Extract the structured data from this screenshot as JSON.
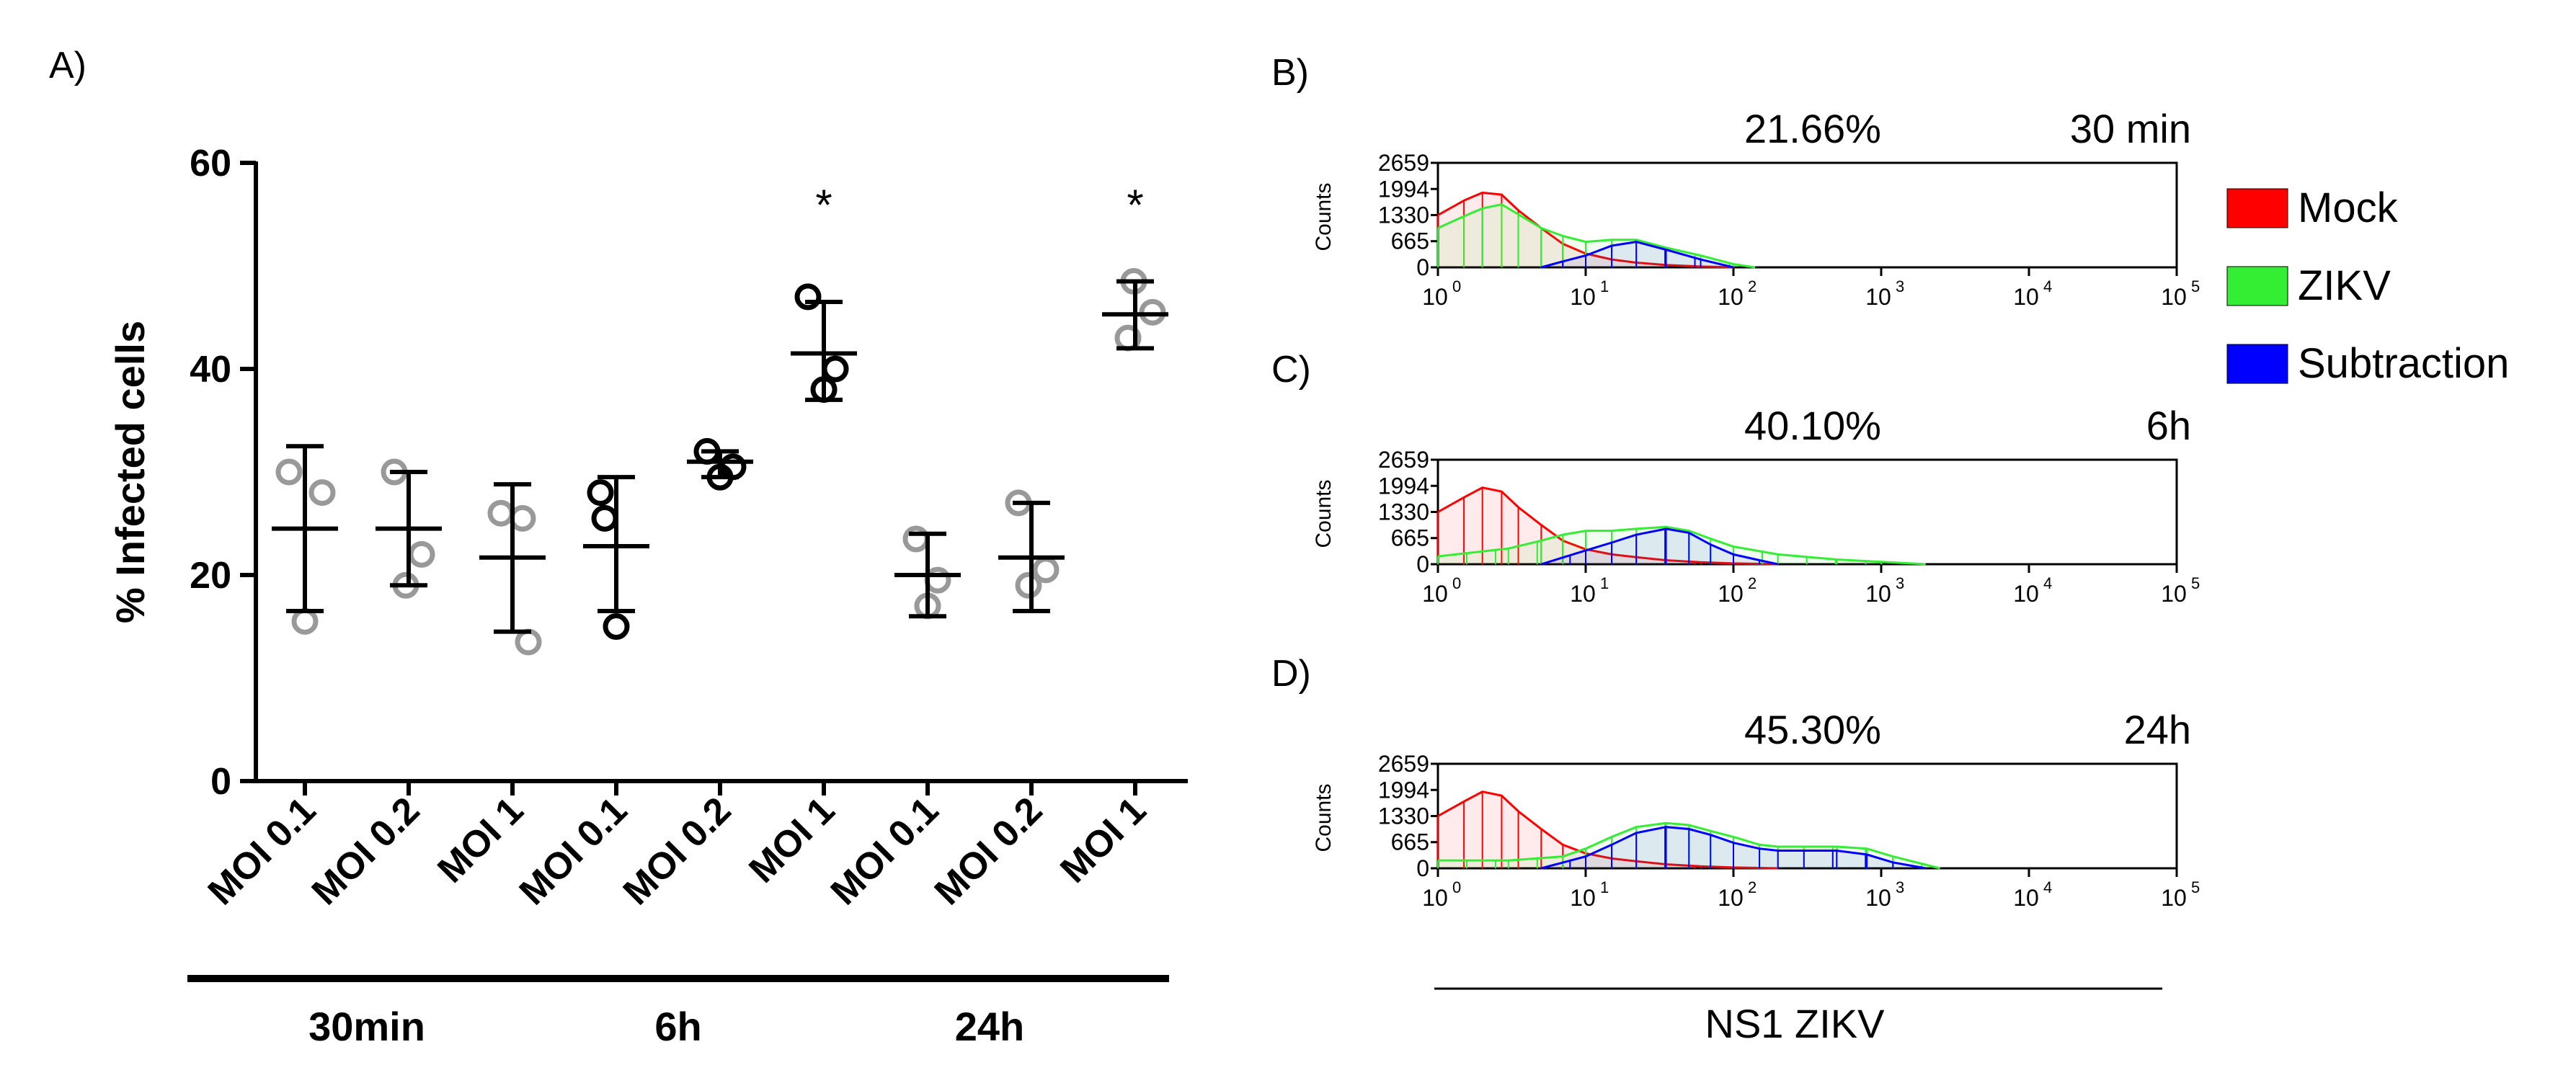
{
  "panel_a": {
    "label": "A)",
    "ylabel": "% Infected cells",
    "yticks": [
      "0",
      "20",
      "40",
      "60"
    ],
    "ylim": [
      0,
      60
    ],
    "categories": [
      "MOI 0.1",
      "MOI 0.2",
      "MOI 1",
      "MOI 0.1",
      "MOI 0.2",
      "MOI 1",
      "MOI 0.1",
      "MOI 0.2",
      "MOI 1"
    ],
    "groups": [
      {
        "label": "30min",
        "from": 0,
        "to": 2
      },
      {
        "label": "6h",
        "from": 3,
        "to": 5
      },
      {
        "label": "24h",
        "from": 6,
        "to": 8
      }
    ],
    "significance": [
      {
        "index": 5,
        "text": "*"
      },
      {
        "index": 8,
        "text": "*"
      }
    ]
  },
  "panels_hist": [
    {
      "label": "B)",
      "percent": "21.66%",
      "time": "30 min"
    },
    {
      "label": "C)",
      "percent": "40.10%",
      "time": "6h"
    },
    {
      "label": "D)",
      "percent": "45.30%",
      "time": "24h"
    }
  ],
  "hist_axis": {
    "ylabel": "Counts",
    "yticks": [
      "0",
      "665",
      "1330",
      "1994",
      "2659"
    ],
    "xticks": [
      "10",
      "10",
      "10",
      "10",
      "10",
      "10"
    ],
    "xexp": [
      "0",
      "1",
      "2",
      "3",
      "4",
      "5"
    ],
    "xlabel": "NS1 ZIKV"
  },
  "legend": [
    {
      "label": "Mock",
      "color": "#ff0000"
    },
    {
      "label": "ZIKV",
      "color": "#33ee33"
    },
    {
      "label": "Subtraction",
      "color": "#0000ff"
    }
  ],
  "chart_data": [
    {
      "type": "scatter",
      "title": "",
      "ylabel": "% Infected cells",
      "ylim": [
        0,
        60
      ],
      "categories": [
        "MOI 0.1",
        "MOI 0.2",
        "MOI 1",
        "MOI 0.1",
        "MOI 0.2",
        "MOI 1",
        "MOI 0.1",
        "MOI 0.2",
        "MOI 1"
      ],
      "groups": [
        "30min",
        "30min",
        "30min",
        "6h",
        "6h",
        "6h",
        "24h",
        "24h",
        "24h"
      ],
      "points": [
        [
          30.0,
          28.0,
          15.5
        ],
        [
          30.0,
          22.0,
          19.0
        ],
        [
          26.0,
          25.5,
          13.5
        ],
        [
          28.0,
          25.5,
          15.0
        ],
        [
          32.0,
          30.5,
          29.5
        ],
        [
          47.0,
          40.0,
          38.0
        ],
        [
          23.5,
          19.5,
          17.0
        ],
        [
          27.0,
          20.5,
          19.0
        ],
        [
          48.5,
          45.5,
          43.0
        ]
      ],
      "mean": [
        24.5,
        24.5,
        21.7,
        22.8,
        31.0,
        41.5,
        20.0,
        21.7,
        45.3
      ],
      "err_low": [
        16.5,
        19.0,
        14.5,
        16.5,
        29.5,
        37.0,
        16.0,
        16.5,
        42.0
      ],
      "err_high": [
        32.5,
        30.0,
        28.8,
        29.5,
        32.0,
        46.5,
        24.0,
        27.0,
        48.5
      ],
      "marker_color": [
        "#999999",
        "#999999",
        "#999999",
        "#000000",
        "#000000",
        "#000000",
        "#999999",
        "#999999",
        "#999999"
      ]
    },
    {
      "type": "area",
      "panel": "B)",
      "xscale": "log10",
      "xlim": [
        1,
        100000
      ],
      "ylim": [
        0,
        2659
      ],
      "series": [
        {
          "name": "Mock",
          "x": [
            1,
            1.5,
            2,
            2.7,
            3.5,
            5,
            7,
            10,
            15,
            22,
            35,
            60,
            100
          ],
          "values": [
            1330,
            1700,
            1900,
            1850,
            1450,
            1000,
            600,
            350,
            200,
            120,
            60,
            20,
            0
          ]
        },
        {
          "name": "ZIKV",
          "x": [
            1,
            1.5,
            2,
            2.7,
            3.5,
            5,
            7,
            10,
            15,
            22,
            35,
            60,
            100,
            140
          ],
          "values": [
            1000,
            1300,
            1500,
            1600,
            1350,
            1000,
            800,
            650,
            700,
            700,
            500,
            300,
            80,
            0
          ]
        },
        {
          "name": "Subtraction",
          "x": [
            5,
            7,
            10,
            15,
            22,
            35,
            60,
            100
          ],
          "values": [
            0,
            150,
            300,
            550,
            650,
            450,
            200,
            0
          ]
        }
      ]
    },
    {
      "type": "area",
      "panel": "C)",
      "xscale": "log10",
      "xlim": [
        1,
        100000
      ],
      "ylim": [
        0,
        2659
      ],
      "series": [
        {
          "name": "Mock",
          "x": [
            1,
            1.5,
            2,
            2.7,
            3.5,
            5,
            7,
            10,
            15,
            22,
            35,
            60,
            100,
            200
          ],
          "values": [
            1330,
            1700,
            1950,
            1850,
            1450,
            1000,
            600,
            380,
            250,
            180,
            100,
            50,
            20,
            0
          ]
        },
        {
          "name": "ZIKV",
          "x": [
            1,
            3,
            5,
            7,
            10,
            15,
            22,
            35,
            50,
            70,
            100,
            200,
            500,
            1000,
            2000
          ],
          "values": [
            200,
            400,
            600,
            750,
            850,
            850,
            900,
            950,
            850,
            650,
            450,
            250,
            120,
            60,
            0
          ]
        },
        {
          "name": "Subtraction",
          "x": [
            5,
            10,
            15,
            22,
            35,
            50,
            70,
            100,
            150,
            200
          ],
          "values": [
            0,
            350,
            550,
            750,
            900,
            800,
            500,
            250,
            100,
            0
          ]
        }
      ]
    },
    {
      "type": "area",
      "panel": "D)",
      "xscale": "log10",
      "xlim": [
        1,
        100000
      ],
      "ylim": [
        0,
        2659
      ],
      "series": [
        {
          "name": "Mock",
          "x": [
            1,
            1.5,
            2,
            2.7,
            3.5,
            5,
            7,
            10,
            15,
            22,
            35,
            60,
            100,
            200
          ],
          "values": [
            1330,
            1700,
            1950,
            1850,
            1450,
            1000,
            600,
            380,
            250,
            180,
            100,
            50,
            20,
            0
          ]
        },
        {
          "name": "ZIKV",
          "x": [
            1,
            3,
            7,
            10,
            15,
            22,
            35,
            50,
            70,
            100,
            150,
            200,
            300,
            500,
            800,
            1200,
            2500
          ],
          "values": [
            200,
            200,
            300,
            500,
            800,
            1050,
            1150,
            1100,
            950,
            800,
            600,
            550,
            550,
            550,
            500,
            300,
            0
          ]
        },
        {
          "name": "Subtraction",
          "x": [
            5,
            10,
            15,
            22,
            35,
            50,
            70,
            100,
            150,
            200,
            300,
            500,
            800,
            1200,
            2000
          ],
          "values": [
            0,
            300,
            600,
            900,
            1050,
            1000,
            850,
            650,
            500,
            450,
            450,
            450,
            350,
            150,
            0
          ]
        }
      ]
    }
  ]
}
